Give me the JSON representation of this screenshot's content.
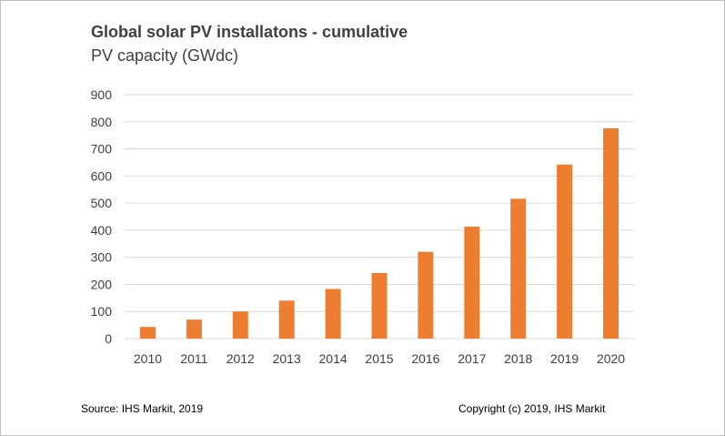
{
  "chart_data": {
    "type": "bar",
    "title": "Global solar PV installatons - cumulative",
    "subtitle": "PV capacity (GWdc)",
    "categories": [
      "2010",
      "2011",
      "2012",
      "2013",
      "2014",
      "2015",
      "2016",
      "2017",
      "2018",
      "2019",
      "2020"
    ],
    "values": [
      43,
      70,
      100,
      140,
      183,
      242,
      320,
      413,
      516,
      642,
      776
    ],
    "yticks": [
      "0",
      "100",
      "200",
      "300",
      "400",
      "500",
      "600",
      "700",
      "800",
      "900"
    ],
    "ylim": [
      0,
      900
    ],
    "xlabel": "",
    "ylabel": "",
    "grid": true,
    "legend": "none",
    "bar_color": "#ed7d31",
    "grid_color": "#d9d9d9"
  },
  "footer": {
    "source": "Source: IHS Markit, 2019",
    "copyright": "Copyright (c) 2019,  IHS Markit"
  }
}
